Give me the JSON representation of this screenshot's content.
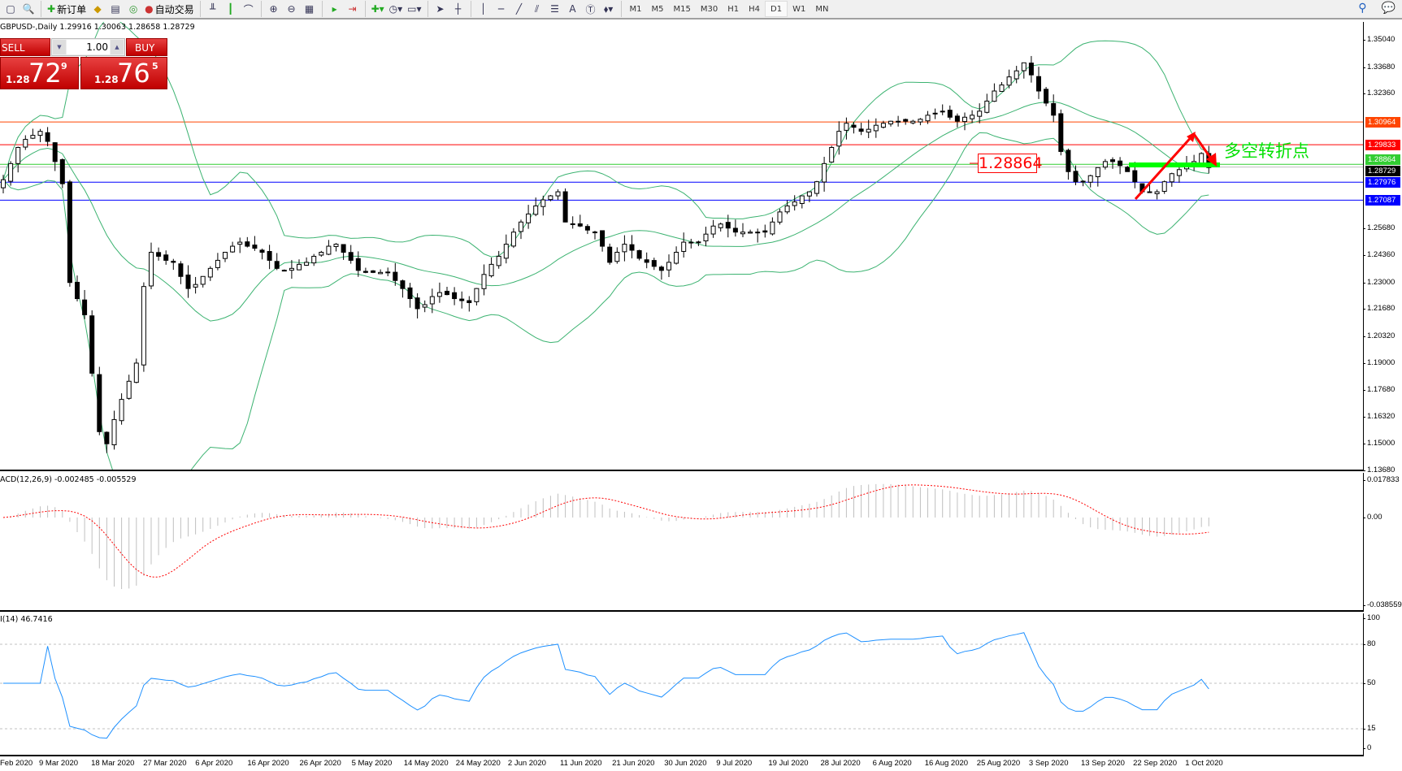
{
  "toolbar": {
    "new_order": "新订单",
    "auto_trading": "自动交易",
    "timeframes": [
      "M1",
      "M5",
      "M15",
      "M30",
      "H1",
      "H4",
      "D1",
      "W1",
      "MN"
    ],
    "active_timeframe": "D1"
  },
  "chart": {
    "header": "GBPUSD-,Daily  1.29916 1.30063 1.28658 1.28729",
    "symbol": "GBPUSD-",
    "period": "Daily",
    "ohlc": {
      "open": "1.29916",
      "high": "1.30063",
      "low": "1.28658",
      "close": "1.28729"
    }
  },
  "oneclick": {
    "sell": "SELL",
    "buy": "BUY",
    "volume": "1.00",
    "sell_price": {
      "prefix": "1.28",
      "big": "72",
      "sup": "9"
    },
    "buy_price": {
      "prefix": "1.28",
      "big": "76",
      "sup": "5"
    }
  },
  "price_axis": [
    "1.35040",
    "1.33680",
    "1.32360",
    "1.25680",
    "1.24360",
    "1.23000",
    "1.21680",
    "1.20320",
    "1.19000",
    "1.17680",
    "1.16320",
    "1.15000",
    "1.13680"
  ],
  "levels": [
    {
      "price": "1.30964",
      "color": "#ff4500",
      "badge": "#ff4500"
    },
    {
      "price": "1.29833",
      "color": "#ff0000",
      "badge": "#ff0000"
    },
    {
      "price": "1.28864",
      "color": "#32cd32",
      "badge": "#32cd32"
    },
    {
      "price": "1.28729",
      "color": "#c0c0c0",
      "badge": "#000000"
    },
    {
      "price": "1.27976",
      "color": "#0000ff",
      "badge": "#0000ff"
    },
    {
      "price": "1.27087",
      "color": "#0000ff",
      "badge": "#0000ff"
    }
  ],
  "annotations": {
    "level_label": "1.28864",
    "turning_point": "多空转折点",
    "label_color": "#ff0000",
    "text_color": "#00e000"
  },
  "macd": {
    "title": "ACD(12,26,9) -0.002485 -0.005529",
    "axis": [
      "0.017833",
      "0.00",
      "-0.038559"
    ]
  },
  "rsi": {
    "title": "I(14) 46.7416",
    "axis": [
      "100",
      "80",
      "50",
      "15",
      "0"
    ]
  },
  "time_axis": [
    "Feb 2020",
    "9 Mar 2020",
    "18 Mar 2020",
    "27 Mar 2020",
    "6 Apr 2020",
    "16 Apr 2020",
    "26 Apr 2020",
    "5 May 2020",
    "14 May 2020",
    "24 May 2020",
    "2 Jun 2020",
    "11 Jun 2020",
    "21 Jun 2020",
    "30 Jun 2020",
    "9 Jul 2020",
    "19 Jul 2020",
    "28 Jul 2020",
    "6 Aug 2020",
    "16 Aug 2020",
    "25 Aug 2020",
    "3 Sep 2020",
    "13 Sep 2020",
    "22 Sep 2020",
    "1 Oct 2020"
  ],
  "chart_data": {
    "type": "candlestick",
    "indicators": [
      "Bollinger Bands(20,2)",
      "MACD(12,26,9)",
      "RSI(14)"
    ],
    "colors": {
      "bands": "#3cb371",
      "macd_signal": "#ff0000",
      "macd_hist": "#c0c0c0",
      "rsi": "#1e90ff"
    },
    "closes": [
      1.281,
      1.289,
      1.297,
      1.301,
      1.303,
      1.305,
      1.3,
      1.29,
      1.279,
      1.23,
      1.222,
      1.214,
      1.185,
      1.156,
      1.15,
      1.162,
      1.172,
      1.181,
      1.19,
      1.228,
      1.245,
      1.243,
      1.241,
      1.24,
      1.233,
      1.227,
      1.229,
      1.233,
      1.237,
      1.241,
      1.245,
      1.248,
      1.25,
      1.248,
      1.247,
      1.245,
      1.241,
      1.237,
      1.236,
      1.237,
      1.239,
      1.24,
      1.243,
      1.245,
      1.248,
      1.249,
      1.245,
      1.241,
      1.236,
      1.235,
      1.235,
      1.235,
      1.235,
      1.231,
      1.227,
      1.222,
      1.217,
      1.219,
      1.223,
      1.225,
      1.224,
      1.222,
      1.221,
      1.22,
      1.227,
      1.234,
      1.239,
      1.243,
      1.249,
      1.255,
      1.26,
      1.264,
      1.268,
      1.271,
      1.273,
      1.275,
      1.26,
      1.259,
      1.258,
      1.256,
      1.255,
      1.248,
      1.24,
      1.245,
      1.249,
      1.246,
      1.242,
      1.24,
      1.238,
      1.236,
      1.24,
      1.245,
      1.25,
      1.25,
      1.25,
      1.254,
      1.258,
      1.259,
      1.257,
      1.255,
      1.255,
      1.255,
      1.255,
      1.255,
      1.26,
      1.265,
      1.268,
      1.27,
      1.273,
      1.275,
      1.28,
      1.289,
      1.297,
      1.305,
      1.309,
      1.307,
      1.305,
      1.306,
      1.308,
      1.309,
      1.31,
      1.31,
      1.31,
      1.31,
      1.311,
      1.313,
      1.314,
      1.315,
      1.312,
      1.31,
      1.312,
      1.313,
      1.315,
      1.32,
      1.325,
      1.328,
      1.332,
      1.335,
      1.339,
      1.333,
      1.325,
      1.319,
      1.313,
      1.295,
      1.285,
      1.28,
      1.28,
      1.283,
      1.287,
      1.29,
      1.29,
      1.288,
      1.285,
      1.28,
      1.275,
      1.275,
      1.275,
      1.28,
      1.284,
      1.286,
      1.288,
      1.29,
      1.294,
      1.287
    ]
  }
}
